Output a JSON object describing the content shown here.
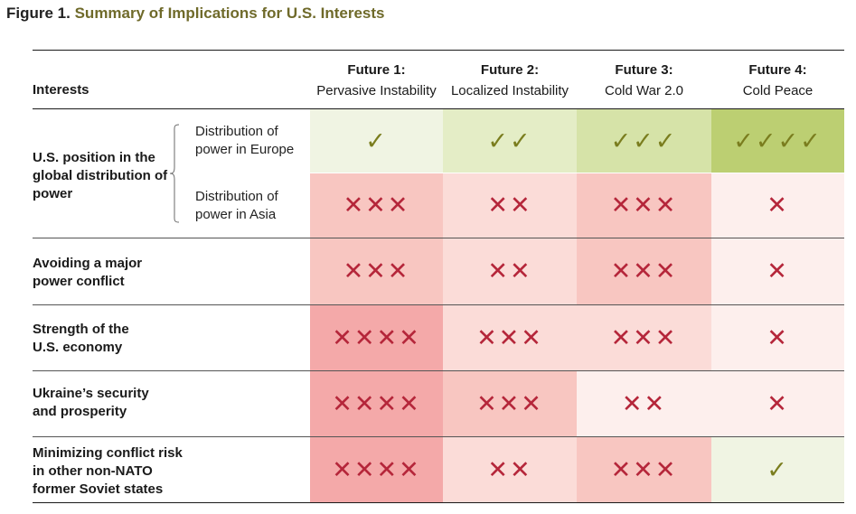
{
  "figure": {
    "number": "Figure 1.",
    "title": "Summary of Implications for U.S. Interests"
  },
  "header": {
    "interests_label": "Interests",
    "columns": [
      {
        "number": "Future 1:",
        "name": "Pervasive Instability"
      },
      {
        "number": "Future 2:",
        "name": "Localized Instability"
      },
      {
        "number": "Future 3:",
        "name": "Cold War 2.0"
      },
      {
        "number": "Future 4:",
        "name": "Cold Peace"
      }
    ]
  },
  "rows": {
    "global_power": {
      "label": "U.S. position in the global distribution of power",
      "europe": {
        "label": "Distribution of power in Europe",
        "cells": [
          "✓",
          "✓✓",
          "✓✓✓",
          "✓✓✓✓"
        ]
      },
      "asia": {
        "label": "Distribution of power in Asia",
        "cells": [
          "✕✕✕",
          "✕✕",
          "✕✕✕",
          "✕"
        ]
      }
    },
    "major_conflict": {
      "label": "Avoiding a major power conflict",
      "cells": [
        "✕✕✕",
        "✕✕",
        "✕✕✕",
        "✕"
      ]
    },
    "economy": {
      "label": "Strength of the U.S. economy",
      "cells": [
        "✕✕✕✕",
        "✕✕✕",
        "✕✕✕",
        "✕"
      ]
    },
    "ukraine": {
      "label": "Ukraine’s security and prosperity",
      "cells": [
        "✕✕✕✕",
        "✕✕✕",
        "✕✕",
        "✕"
      ]
    },
    "non_nato": {
      "label": "Minimizing conflict risk in other non-NATO former Soviet states",
      "cells": [
        "✕✕✕✕",
        "✕✕",
        "✕✕✕",
        "✓"
      ]
    }
  },
  "colors": {
    "x_mark": "#b5263a",
    "check_mark": "#7a7d1e",
    "x_4": "#f4a9a9",
    "x_3": "#f8c6c1",
    "x_2": "#fbdcd8",
    "x_1": "#fdefed",
    "check_4": "#bccf72",
    "check_3": "#d6e3a8",
    "check_2": "#e4edc6",
    "check_1": "#f0f4e3"
  }
}
